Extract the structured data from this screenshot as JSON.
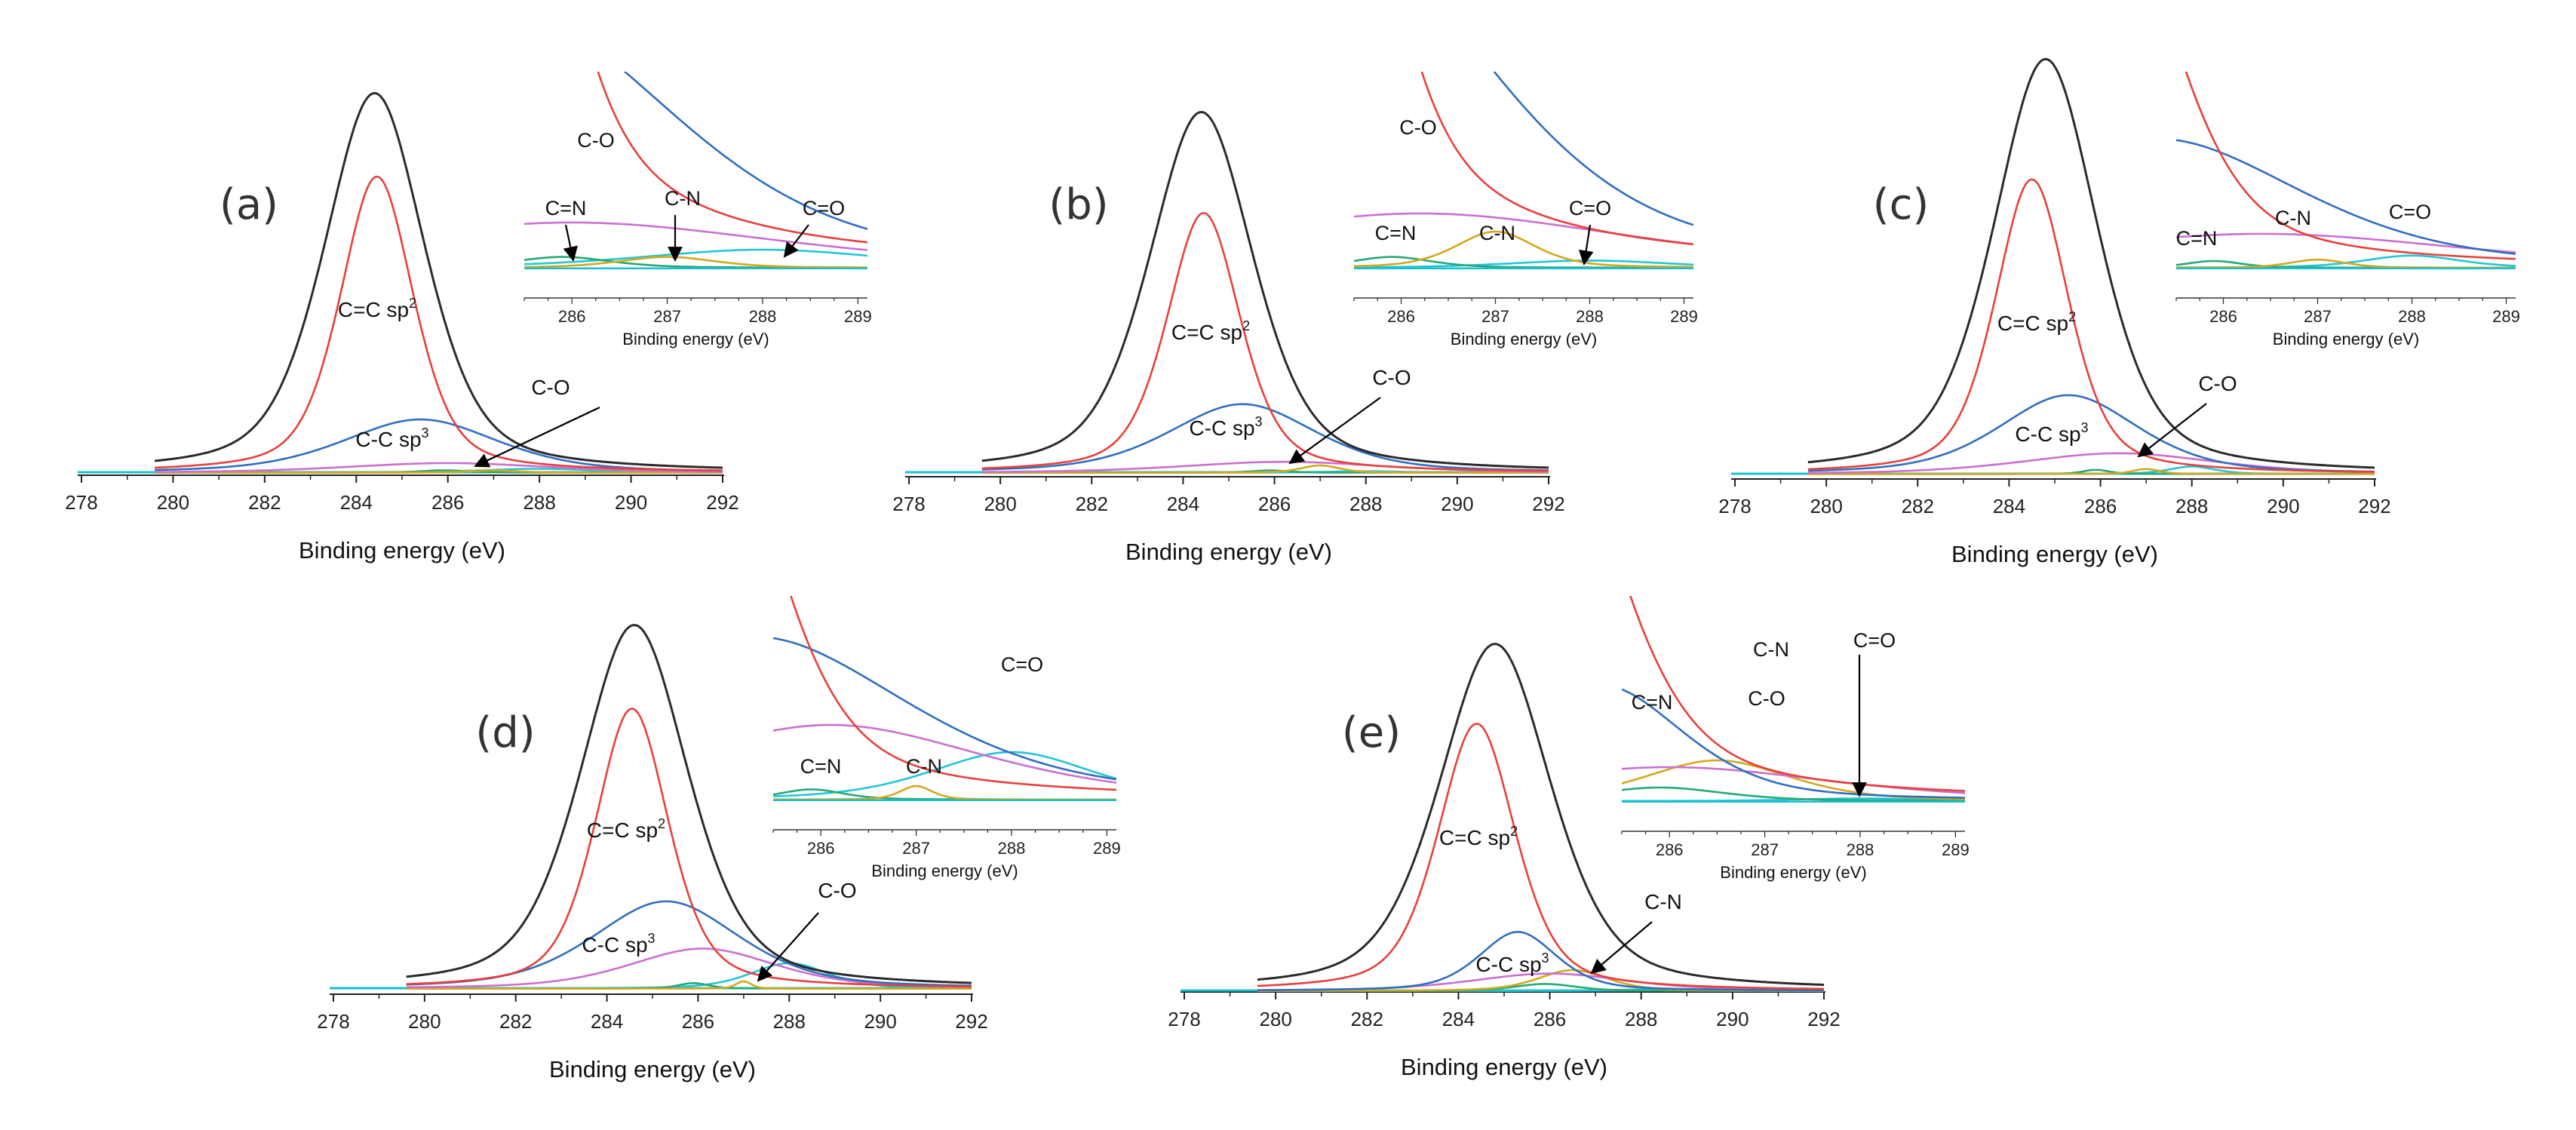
{
  "figure": {
    "type": "xps_c1s_deconvolution",
    "description_units": "Binding energy (eV)"
  },
  "colors": {
    "total": "#2b2b2b",
    "csp2": "#e8403c",
    "csp3": "#2f6fbf",
    "co": "#cc6fd0",
    "cn": "#d4a81c",
    "cdn": "#27a877",
    "cdo": "#22c6d6",
    "baseline": "#18c0d0",
    "arrow": "#000000"
  },
  "chart_data": [
    {
      "id": "a",
      "panel_label": "(a)",
      "type": "line",
      "xlabel": "Binding energy (eV)",
      "xlim": [
        278,
        292
      ],
      "xticks": [
        "278",
        "280",
        "282",
        "284",
        "286",
        "288",
        "290",
        "292"
      ],
      "peaks": [
        {
          "name": "Total",
          "key": "total",
          "center": 284.4,
          "amp": 1.0,
          "width": 1.3
        },
        {
          "name": "C=C sp2",
          "key": "csp2",
          "center": 284.45,
          "amp": 0.78,
          "width": 0.95
        },
        {
          "name": "C-C sp3",
          "key": "csp3",
          "center": 285.4,
          "amp": 0.14,
          "width": 2.0
        },
        {
          "name": "C-O",
          "key": "co",
          "center": 286.0,
          "amp": 0.025,
          "width": 2.6
        },
        {
          "name": "C=N",
          "key": "cdn",
          "center": 285.9,
          "amp": 0.006,
          "width": 0.6
        },
        {
          "name": "C-N",
          "key": "cn",
          "center": 287.0,
          "amp": 0.006,
          "width": 0.6
        },
        {
          "name": "C=O",
          "key": "cdo",
          "center": 288.0,
          "amp": 0.01,
          "width": 1.5
        }
      ],
      "annotations": {
        "sp2": "C=C sp",
        "sp2_sup": "2",
        "sp3": "C-C sp",
        "sp3_sup": "3",
        "co": "C-O"
      },
      "inset": {
        "xlim": [
          285.5,
          289.1
        ],
        "xticks": [
          "286",
          "287",
          "288",
          "289"
        ],
        "xlabel": "Binding energy (eV)",
        "labels": {
          "co": "C-O",
          "cdn": "C=N",
          "cn": "C-N",
          "cdo": "C=O"
        }
      }
    },
    {
      "id": "b",
      "panel_label": "(b)",
      "type": "line",
      "xlabel": "Binding energy (eV)",
      "xlim": [
        278,
        292
      ],
      "xticks": [
        "278",
        "280",
        "282",
        "284",
        "286",
        "288",
        "290",
        "292"
      ],
      "peaks": [
        {
          "name": "Total",
          "key": "total",
          "center": 284.4,
          "amp": 1.0,
          "width": 1.35
        },
        {
          "name": "C=C sp2",
          "key": "csp2",
          "center": 284.45,
          "amp": 0.72,
          "width": 0.95
        },
        {
          "name": "C-C sp3",
          "key": "csp3",
          "center": 285.3,
          "amp": 0.19,
          "width": 1.9
        },
        {
          "name": "C-O",
          "key": "co",
          "center": 286.2,
          "amp": 0.03,
          "width": 2.6
        },
        {
          "name": "C=N",
          "key": "cdn",
          "center": 285.9,
          "amp": 0.006,
          "width": 0.5
        },
        {
          "name": "C-N",
          "key": "cn",
          "center": 287.0,
          "amp": 0.02,
          "width": 0.5
        },
        {
          "name": "C=O",
          "key": "cdo",
          "center": 288.0,
          "amp": 0.004,
          "width": 1.0
        }
      ],
      "annotations": {
        "sp2": "C=C sp",
        "sp2_sup": "2",
        "sp3": "C-C sp",
        "sp3_sup": "3",
        "co": "C-O"
      },
      "inset": {
        "xlim": [
          285.5,
          289.1
        ],
        "xticks": [
          "286",
          "287",
          "288",
          "289"
        ],
        "xlabel": "Binding energy (eV)",
        "labels": {
          "co": "C-O",
          "cdn": "C=N",
          "cn": "C-N",
          "cdo": "C=O"
        }
      }
    },
    {
      "id": "c",
      "panel_label": "(c)",
      "type": "line",
      "xlabel": "Binding energy (eV)",
      "xlim": [
        278,
        292
      ],
      "xticks": [
        "278",
        "280",
        "282",
        "284",
        "286",
        "288",
        "290",
        "292"
      ],
      "peaks": [
        {
          "name": "Total",
          "key": "total",
          "center": 284.8,
          "amp": 1.0,
          "width": 1.35
        },
        {
          "name": "C=C sp2",
          "key": "csp2",
          "center": 284.5,
          "amp": 0.71,
          "width": 0.95
        },
        {
          "name": "C-C sp3",
          "key": "csp3",
          "center": 285.3,
          "amp": 0.19,
          "width": 1.8
        },
        {
          "name": "C-O",
          "key": "co",
          "center": 286.4,
          "amp": 0.05,
          "width": 2.5
        },
        {
          "name": "C=N",
          "key": "cdn",
          "center": 285.9,
          "amp": 0.01,
          "width": 0.35
        },
        {
          "name": "C-N",
          "key": "cn",
          "center": 287.0,
          "amp": 0.012,
          "width": 0.35
        },
        {
          "name": "C=O",
          "key": "cdo",
          "center": 288.0,
          "amp": 0.018,
          "width": 0.6
        }
      ],
      "annotations": {
        "sp2": "C=C sp",
        "sp2_sup": "2",
        "sp3": "C-C sp",
        "sp3_sup": "3",
        "co": "C-O"
      },
      "inset": {
        "xlim": [
          285.5,
          289.1
        ],
        "xticks": [
          "286",
          "287",
          "288",
          "289"
        ],
        "xlabel": "Binding energy (eV)",
        "labels": {
          "cdn": "C=N",
          "cn": "C-N",
          "cdo": "C=O"
        }
      }
    },
    {
      "id": "d",
      "panel_label": "(d)",
      "type": "line",
      "xlabel": "Binding energy (eV)",
      "xlim": [
        278,
        292
      ],
      "xticks": [
        "278",
        "280",
        "282",
        "284",
        "286",
        "288",
        "290",
        "292"
      ],
      "peaks": [
        {
          "name": "Total",
          "key": "total",
          "center": 284.6,
          "amp": 1.0,
          "width": 1.4
        },
        {
          "name": "C=C sp2",
          "key": "csp2",
          "center": 284.55,
          "amp": 0.77,
          "width": 0.95
        },
        {
          "name": "C-C sp3",
          "key": "csp3",
          "center": 285.3,
          "amp": 0.24,
          "width": 1.9
        },
        {
          "name": "C-O",
          "key": "co",
          "center": 286.1,
          "amp": 0.11,
          "width": 1.9
        },
        {
          "name": "C=N",
          "key": "cdn",
          "center": 285.9,
          "amp": 0.015,
          "width": 0.4
        },
        {
          "name": "C-N",
          "key": "cn",
          "center": 287.0,
          "amp": 0.02,
          "width": 0.2
        },
        {
          "name": "C=O",
          "key": "cdo",
          "center": 288.0,
          "amp": 0.07,
          "width": 1.0
        }
      ],
      "annotations": {
        "sp2": "C=C sp",
        "sp2_sup": "2",
        "sp3": "C-C sp",
        "sp3_sup": "3",
        "co": "C-O"
      },
      "inset": {
        "xlim": [
          285.5,
          289.1
        ],
        "xticks": [
          "286",
          "287",
          "288",
          "289"
        ],
        "xlabel": "Binding energy (eV)",
        "labels": {
          "cdo": "C=O",
          "cdn": "C=N",
          "cn": "C-N"
        }
      }
    },
    {
      "id": "e",
      "panel_label": "(e)",
      "type": "line",
      "xlabel": "Binding energy (eV)",
      "xlim": [
        278,
        292
      ],
      "xticks": [
        "278",
        "280",
        "282",
        "284",
        "286",
        "288",
        "290",
        "292"
      ],
      "peaks": [
        {
          "name": "Total",
          "key": "total",
          "center": 284.8,
          "amp": 1.0,
          "width": 1.45
        },
        {
          "name": "C=C sp2",
          "key": "csp2",
          "center": 284.4,
          "amp": 0.77,
          "width": 1.0
        },
        {
          "name": "C-C sp3",
          "key": "csp3",
          "center": 285.3,
          "amp": 0.17,
          "width": 1.0
        },
        {
          "name": "C-O",
          "key": "co",
          "center": 286.0,
          "amp": 0.05,
          "width": 2.0
        },
        {
          "name": "C=N",
          "key": "cdn",
          "center": 285.9,
          "amp": 0.02,
          "width": 0.8
        },
        {
          "name": "C-N",
          "key": "cn",
          "center": 286.5,
          "amp": 0.06,
          "width": 0.9
        },
        {
          "name": "C=O",
          "key": "cdo",
          "center": 288.0,
          "amp": 0.004,
          "width": 0.8
        }
      ],
      "annotations": {
        "sp2": "C=C sp",
        "sp2_sup": "2",
        "sp3": "C-C sp",
        "sp3_sup": "3",
        "cn": "C-N"
      },
      "inset": {
        "xlim": [
          285.5,
          289.1
        ],
        "xticks": [
          "286",
          "287",
          "288",
          "289"
        ],
        "xlabel": "Binding energy (eV)",
        "labels": {
          "cdn": "C=N",
          "cn": "C-N",
          "co": "C-O",
          "cdo": "C=O"
        }
      }
    }
  ]
}
